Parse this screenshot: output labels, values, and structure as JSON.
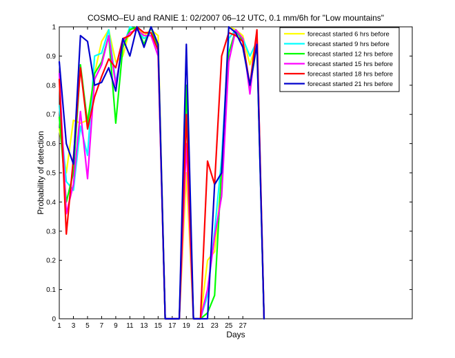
{
  "chart_data": {
    "type": "line",
    "title": "COSMO–EU and RANIE 1: 02/2007 06–12 UTC, 0.1 mm/6h for \"Low mountains\"",
    "xlabel": "Days",
    "ylabel": "Probability of detection",
    "xlim": [
      1,
      51
    ],
    "ylim": [
      0,
      1
    ],
    "xticks": [
      1,
      3,
      5,
      7,
      9,
      11,
      13,
      15,
      17,
      19,
      21,
      23,
      25,
      27
    ],
    "xtick_labels": [
      "1",
      "3",
      "5",
      "7",
      "9",
      "11",
      "13",
      "15",
      "17",
      "19",
      "21",
      "23",
      "25",
      "27"
    ],
    "yticks": [
      0,
      0.1,
      0.2,
      0.3,
      0.4,
      0.5,
      0.6,
      0.7,
      0.8,
      0.9,
      1
    ],
    "ytick_labels": [
      "0",
      "0.1",
      "0.2",
      "0.3",
      "0.4",
      "0.5",
      "0.6",
      "0.7",
      "0.8",
      "0.9",
      "1"
    ],
    "grid": false,
    "legend_position": "top-right",
    "series": [
      {
        "name": "forecast started 6 hrs before",
        "color": "#ffff00",
        "x": [
          1,
          2,
          3,
          4,
          5,
          6,
          7,
          8,
          9,
          10,
          11,
          12,
          13,
          14,
          15,
          16,
          17,
          18,
          19,
          20,
          21,
          22,
          23,
          24,
          25,
          26,
          27,
          28,
          29,
          30
        ],
        "y": [
          0.65,
          0.5,
          0.68,
          0.67,
          0.68,
          0.84,
          0.95,
          0.99,
          0.88,
          0.9,
          0.99,
          1.0,
          0.97,
          0.99,
          0.97,
          0.0,
          0.0,
          0.0,
          0.5,
          0.0,
          0.0,
          0.2,
          0.23,
          0.48,
          1.0,
          0.99,
          0.97,
          0.87,
          0.95,
          0.0
        ]
      },
      {
        "name": "forecast started 9 hrs before",
        "color": "#00ffff",
        "x": [
          1,
          2,
          3,
          4,
          5,
          6,
          7,
          8,
          9,
          10,
          11,
          12,
          13,
          14,
          15,
          16,
          17,
          18,
          19,
          20,
          21,
          22,
          23,
          24,
          25,
          26,
          27,
          28,
          29,
          30
        ],
        "y": [
          0.73,
          0.47,
          0.44,
          0.66,
          0.56,
          0.9,
          0.91,
          0.99,
          0.81,
          0.93,
          1.0,
          0.99,
          0.96,
          0.98,
          0.93,
          0.0,
          0.0,
          0.0,
          0.7,
          0.0,
          0.0,
          0.08,
          0.3,
          0.55,
          0.96,
          0.99,
          0.96,
          0.9,
          0.95,
          0.0
        ]
      },
      {
        "name": "forecast started 12 hrs before",
        "color": "#00ff00",
        "x": [
          1,
          2,
          3,
          4,
          5,
          6,
          7,
          8,
          9,
          10,
          11,
          12,
          13,
          14,
          15,
          16,
          17,
          18,
          19,
          20,
          21,
          22,
          23,
          24,
          25,
          26,
          27,
          28,
          29,
          30
        ],
        "y": [
          0.69,
          0.4,
          0.5,
          0.87,
          0.67,
          0.84,
          0.88,
          0.97,
          0.67,
          0.93,
          0.99,
          1.0,
          0.94,
          1.0,
          0.92,
          0.0,
          0.0,
          0.0,
          0.8,
          0.0,
          0.0,
          0.02,
          0.08,
          0.52,
          0.91,
          0.99,
          0.95,
          0.79,
          0.94,
          0.0
        ]
      },
      {
        "name": "forecast started 15 hrs before",
        "color": "#ff00ff",
        "x": [
          1,
          2,
          3,
          4,
          5,
          6,
          7,
          8,
          9,
          10,
          11,
          12,
          13,
          14,
          15,
          16,
          17,
          18,
          19,
          20,
          21,
          22,
          23,
          24,
          25,
          26,
          27,
          28,
          29,
          30
        ],
        "y": [
          0.84,
          0.36,
          0.46,
          0.71,
          0.48,
          0.82,
          0.87,
          0.97,
          0.8,
          0.95,
          0.98,
          0.99,
          0.97,
          0.97,
          0.9,
          0.0,
          0.0,
          0.0,
          0.6,
          0.0,
          0.0,
          0.1,
          0.28,
          0.42,
          0.88,
          0.99,
          0.96,
          0.77,
          0.98,
          0.0
        ]
      },
      {
        "name": "forecast started 18 hrs before",
        "color": "#ff0000",
        "x": [
          1,
          2,
          3,
          4,
          5,
          6,
          7,
          8,
          9,
          10,
          11,
          12,
          13,
          14,
          15,
          16,
          17,
          18,
          19,
          20,
          21,
          22,
          23,
          24,
          25,
          26,
          27,
          28,
          29,
          30
        ],
        "y": [
          0.82,
          0.29,
          0.55,
          0.86,
          0.65,
          0.76,
          0.83,
          0.89,
          0.86,
          0.96,
          0.97,
          1.0,
          0.98,
          0.98,
          0.92,
          0.0,
          0.0,
          0.0,
          0.7,
          0.0,
          0.0,
          0.54,
          0.46,
          0.9,
          0.98,
          0.97,
          0.95,
          0.8,
          0.99,
          0.0
        ]
      },
      {
        "name": "forecast started 21 hrs before",
        "color": "#0000cc",
        "x": [
          1,
          2,
          3,
          4,
          5,
          6,
          7,
          8,
          9,
          10,
          11,
          12,
          13,
          14,
          15,
          16,
          17,
          18,
          19,
          20,
          21,
          22,
          23,
          24,
          25,
          26,
          27,
          28,
          29,
          30
        ],
        "y": [
          0.88,
          0.6,
          0.53,
          0.97,
          0.95,
          0.8,
          0.81,
          0.86,
          0.78,
          0.96,
          0.9,
          1.0,
          0.93,
          1.0,
          0.94,
          0.0,
          0.0,
          0.0,
          0.94,
          0.0,
          0.0,
          0.0,
          0.46,
          0.5,
          1.0,
          0.98,
          0.93,
          0.8,
          0.94,
          0.0
        ]
      }
    ]
  }
}
